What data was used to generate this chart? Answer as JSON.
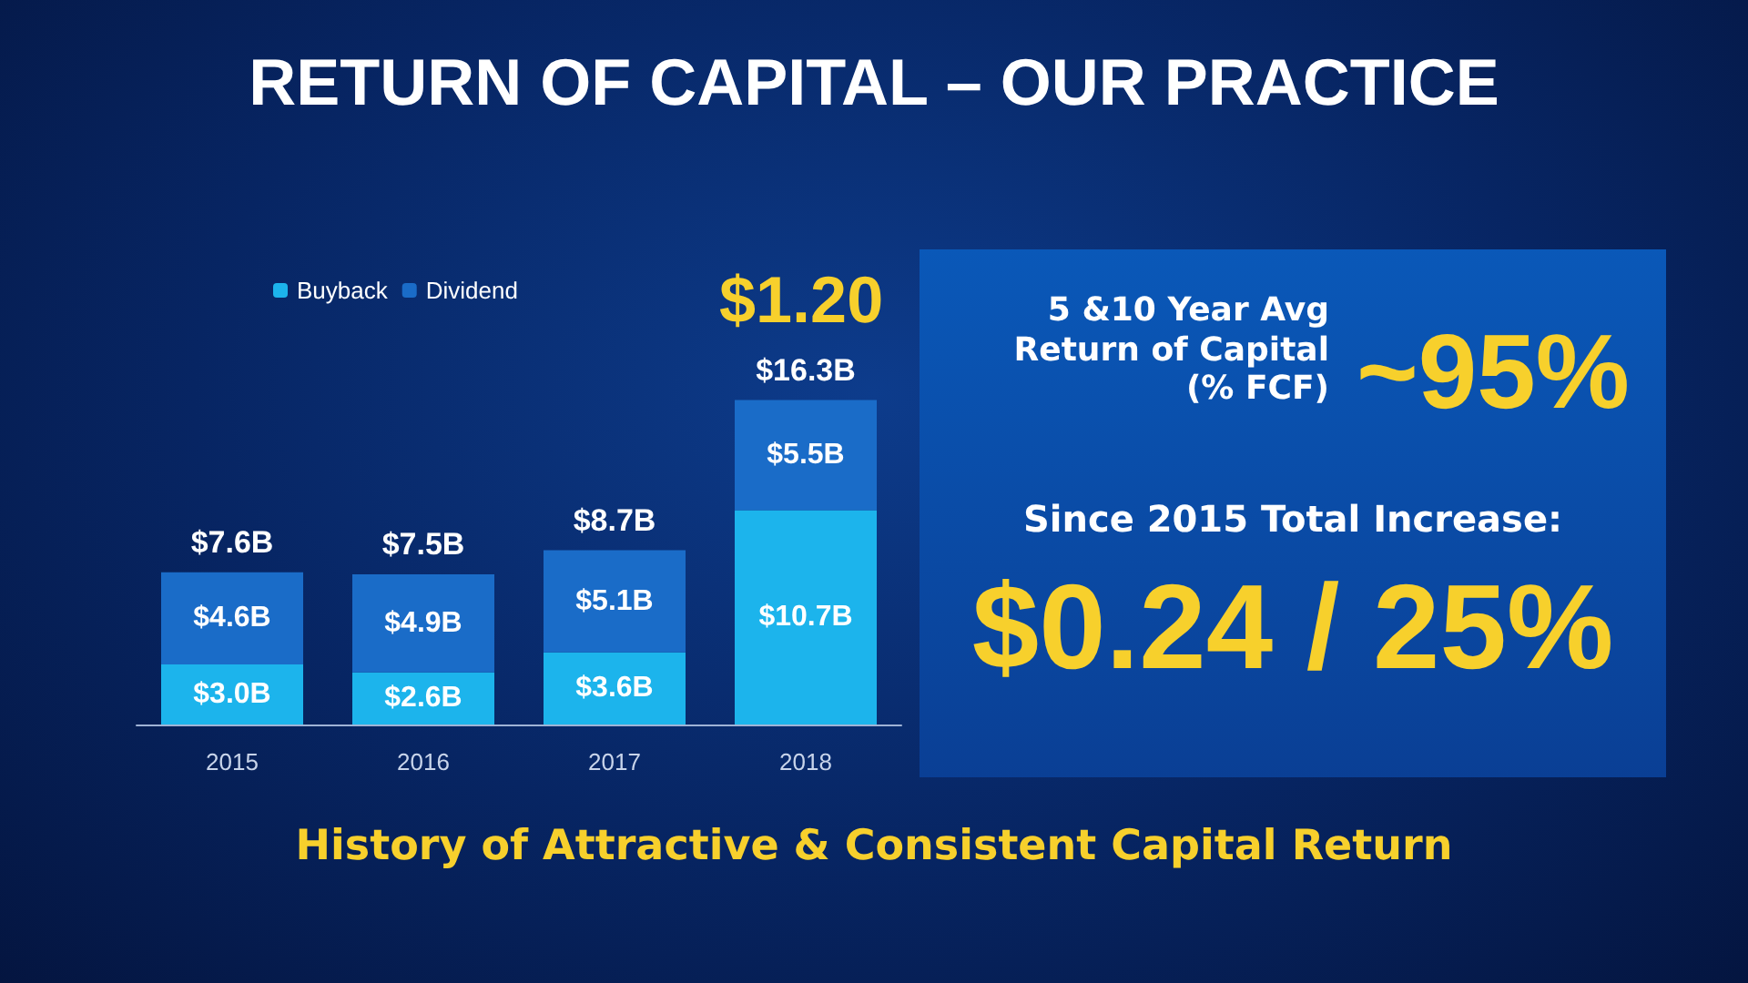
{
  "chart_data": {
    "type": "bar",
    "title": "RETURN OF CAPITAL – OUR PRACTICE",
    "categories": [
      "2015",
      "2016",
      "2017",
      "2018"
    ],
    "stacked": true,
    "legend": "top left",
    "series": [
      {
        "name": "Buyback",
        "color": "#1cb4ec",
        "values": [
          3.0,
          2.6,
          3.6,
          10.7
        ],
        "value_labels": [
          "$3.0B",
          "$2.6B",
          "$3.6B",
          "$10.7B"
        ]
      },
      {
        "name": "Dividend",
        "color": "#1a6cc8",
        "values": [
          4.6,
          4.9,
          5.1,
          5.5
        ],
        "value_labels": [
          "$4.6B",
          "$4.9B",
          "$5.1B",
          "$5.5B"
        ]
      }
    ],
    "totals": [
      "$7.6B",
      "$7.5B",
      "$8.7B",
      "$16.3B"
    ],
    "annotations": [
      "$1.20",
      "5 &10 Year Avg Return of Capital (% FCF)",
      "~95%",
      "Since 2015 Total Increase:",
      "$0.24 / 25%",
      "History of Attractive & Consistent Capital Return"
    ]
  }
}
